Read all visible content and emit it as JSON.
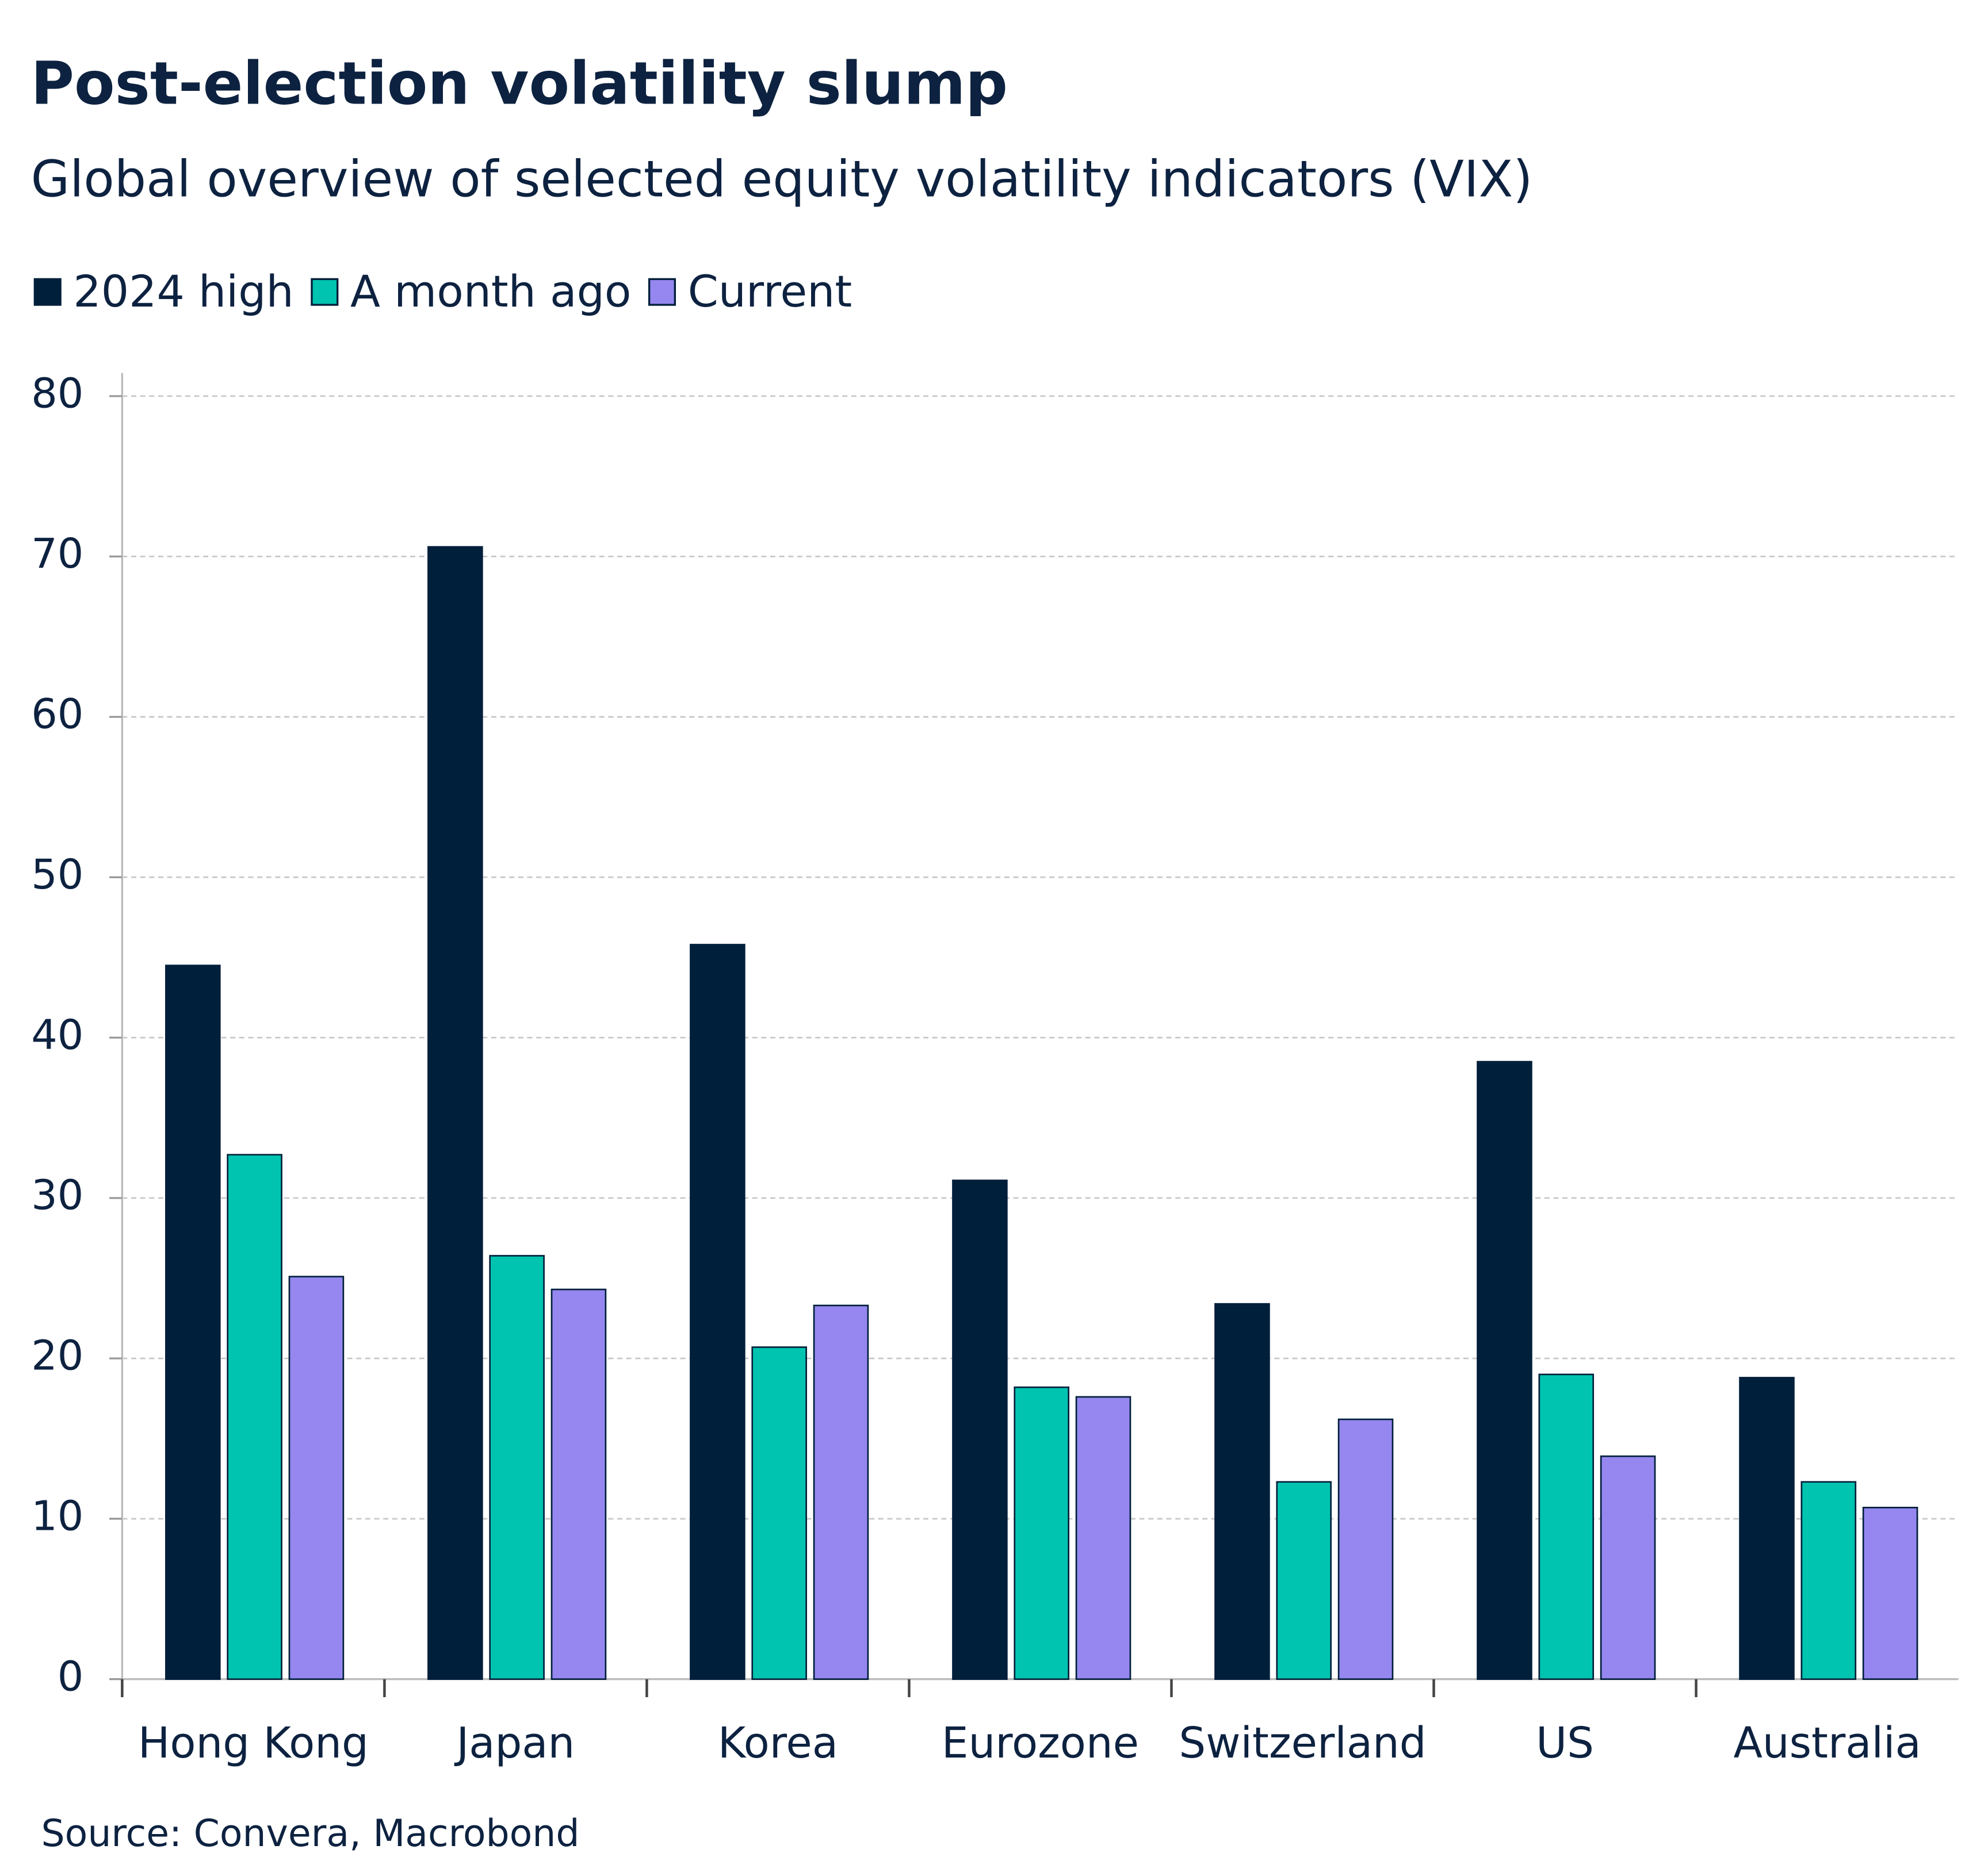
{
  "chart_data": {
    "type": "bar",
    "title": "Post-election volatility slump",
    "subtitle": "Global overview of selected equity volatility indicators (VIX)",
    "source": "Source: Convera, Macrobond",
    "categories": [
      "Hong Kong",
      "Japan",
      "Korea",
      "Eurozone",
      "Switzerland",
      "US",
      "Australia"
    ],
    "series": [
      {
        "name": "2024 high",
        "color": "#001f3a",
        "values": [
          44.5,
          70.6,
          45.8,
          31.1,
          23.4,
          38.5,
          18.8
        ]
      },
      {
        "name": "A month ago",
        "color": "#00c4b0",
        "values": [
          32.7,
          26.4,
          20.7,
          18.2,
          12.3,
          19.0,
          12.3
        ]
      },
      {
        "name": "Current",
        "color": "#9587ef",
        "values": [
          25.1,
          24.3,
          23.3,
          17.6,
          16.2,
          13.9,
          10.7
        ]
      }
    ],
    "ylim": [
      0,
      80
    ],
    "yticks": [
      0,
      10,
      20,
      30,
      40,
      50,
      60,
      70,
      80
    ],
    "grid": true,
    "legend": "top-left"
  }
}
